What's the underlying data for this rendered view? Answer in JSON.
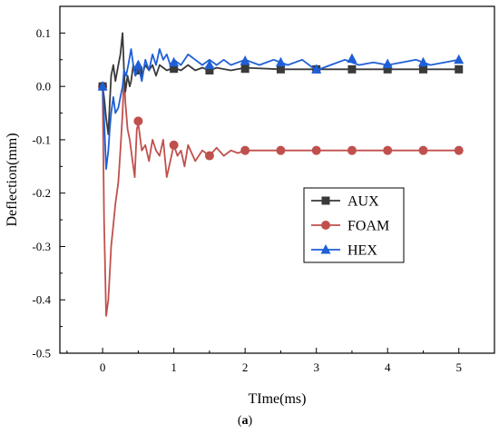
{
  "chart_data": {
    "type": "line",
    "xlabel": "TIme(ms)",
    "ylabel": "Deflection(mm)",
    "caption_open": "(",
    "caption_letter": "a",
    "caption_close": ")",
    "xlim": [
      -0.6,
      5.5
    ],
    "ylim": [
      -0.5,
      0.15
    ],
    "xticks": [
      0,
      1,
      2,
      3,
      4,
      5
    ],
    "yticks": [
      -0.5,
      -0.4,
      -0.3,
      -0.2,
      -0.1,
      0.0,
      0.1
    ],
    "ytick_labels": [
      "-0.5",
      "-0.4",
      "-0.3",
      "-0.2",
      "-0.1",
      "0.0",
      "0.1"
    ],
    "legend_position": "center-right",
    "grid": false,
    "series": [
      {
        "name": "AUX",
        "color": "#3a3a3a",
        "marker": "square",
        "x": [
          0,
          0.02,
          0.05,
          0.08,
          0.1,
          0.12,
          0.15,
          0.18,
          0.22,
          0.25,
          0.28,
          0.3,
          0.32,
          0.35,
          0.38,
          0.4,
          0.43,
          0.46,
          0.5,
          0.55,
          0.6,
          0.65,
          0.7,
          0.75,
          0.8,
          0.9,
          1.0,
          1.1,
          1.2,
          1.3,
          1.4,
          1.5,
          1.6,
          1.8,
          2.0,
          2.5,
          3.0,
          3.5,
          4.0,
          4.5,
          5.0
        ],
        "y": [
          0.0,
          -0.02,
          -0.06,
          -0.09,
          -0.03,
          0.02,
          0.04,
          0.01,
          0.04,
          0.06,
          0.1,
          0.03,
          -0.01,
          0.02,
          0.0,
          0.01,
          0.04,
          0.02,
          0.03,
          0.02,
          0.04,
          0.03,
          0.04,
          0.02,
          0.04,
          0.03,
          0.035,
          0.03,
          0.04,
          0.03,
          0.035,
          0.03,
          0.035,
          0.03,
          0.035,
          0.032,
          0.032,
          0.032,
          0.032,
          0.032,
          0.032
        ],
        "marker_x": [
          0,
          0.5,
          1.0,
          1.5,
          2.0,
          2.5,
          3.0,
          3.5,
          4.0,
          4.5,
          5.0
        ],
        "marker_y": [
          0.0,
          0.03,
          0.033,
          0.03,
          0.033,
          0.032,
          0.032,
          0.032,
          0.032,
          0.032,
          0.032
        ]
      },
      {
        "name": "FOAM",
        "color": "#c0504d",
        "marker": "circle",
        "x": [
          0,
          0.02,
          0.05,
          0.08,
          0.1,
          0.12,
          0.15,
          0.18,
          0.2,
          0.22,
          0.25,
          0.28,
          0.3,
          0.32,
          0.35,
          0.38,
          0.42,
          0.45,
          0.48,
          0.5,
          0.55,
          0.6,
          0.65,
          0.7,
          0.75,
          0.8,
          0.85,
          0.9,
          0.95,
          1.0,
          1.05,
          1.1,
          1.15,
          1.2,
          1.3,
          1.4,
          1.5,
          1.6,
          1.7,
          1.8,
          1.9,
          2.0,
          2.5,
          3.0,
          3.5,
          4.0,
          4.5,
          5.0
        ],
        "y": [
          0.0,
          -0.25,
          -0.43,
          -0.4,
          -0.35,
          -0.3,
          -0.26,
          -0.22,
          -0.2,
          -0.18,
          -0.12,
          -0.05,
          0.02,
          -0.03,
          -0.08,
          -0.1,
          -0.14,
          -0.17,
          -0.08,
          -0.07,
          -0.12,
          -0.11,
          -0.14,
          -0.1,
          -0.12,
          -0.13,
          -0.1,
          -0.17,
          -0.14,
          -0.11,
          -0.13,
          -0.12,
          -0.15,
          -0.11,
          -0.14,
          -0.12,
          -0.13,
          -0.115,
          -0.13,
          -0.12,
          -0.125,
          -0.12,
          -0.12,
          -0.12,
          -0.12,
          -0.12,
          -0.12,
          -0.12
        ],
        "marker_x": [
          0,
          0.5,
          1.0,
          1.5,
          2.0,
          2.5,
          3.0,
          3.5,
          4.0,
          4.5,
          5.0
        ],
        "marker_y": [
          0.0,
          -0.065,
          -0.11,
          -0.13,
          -0.12,
          -0.12,
          -0.12,
          -0.12,
          -0.12,
          -0.12,
          -0.12
        ]
      },
      {
        "name": "HEX",
        "color": "#1f5fd6",
        "marker": "triangle",
        "x": [
          0,
          0.02,
          0.05,
          0.08,
          0.1,
          0.12,
          0.15,
          0.18,
          0.22,
          0.25,
          0.28,
          0.3,
          0.33,
          0.36,
          0.4,
          0.43,
          0.46,
          0.5,
          0.55,
          0.6,
          0.65,
          0.7,
          0.75,
          0.8,
          0.85,
          0.9,
          0.95,
          1.0,
          1.1,
          1.2,
          1.3,
          1.4,
          1.5,
          1.6,
          1.7,
          1.8,
          1.9,
          2.0,
          2.2,
          2.4,
          2.6,
          2.8,
          3.0,
          3.2,
          3.4,
          3.6,
          3.8,
          4.0,
          4.2,
          4.4,
          4.6,
          4.8,
          5.0
        ],
        "y": [
          0.0,
          -0.06,
          -0.155,
          -0.12,
          -0.08,
          -0.05,
          -0.02,
          -0.05,
          -0.04,
          -0.02,
          0.0,
          0.03,
          0.02,
          0.04,
          0.07,
          0.04,
          0.02,
          0.04,
          0.01,
          0.05,
          0.03,
          0.06,
          0.04,
          0.07,
          0.05,
          0.06,
          0.04,
          0.05,
          0.04,
          0.06,
          0.05,
          0.04,
          0.05,
          0.04,
          0.05,
          0.04,
          0.045,
          0.05,
          0.04,
          0.05,
          0.04,
          0.05,
          0.03,
          0.04,
          0.05,
          0.04,
          0.045,
          0.04,
          0.045,
          0.05,
          0.04,
          0.045,
          0.05
        ],
        "marker_x": [
          0,
          0.5,
          1.0,
          1.5,
          2.0,
          2.5,
          3.0,
          3.5,
          4.0,
          4.5,
          5.0
        ],
        "marker_y": [
          0.0,
          0.04,
          0.045,
          0.04,
          0.048,
          0.045,
          0.032,
          0.052,
          0.042,
          0.045,
          0.05
        ]
      }
    ]
  }
}
